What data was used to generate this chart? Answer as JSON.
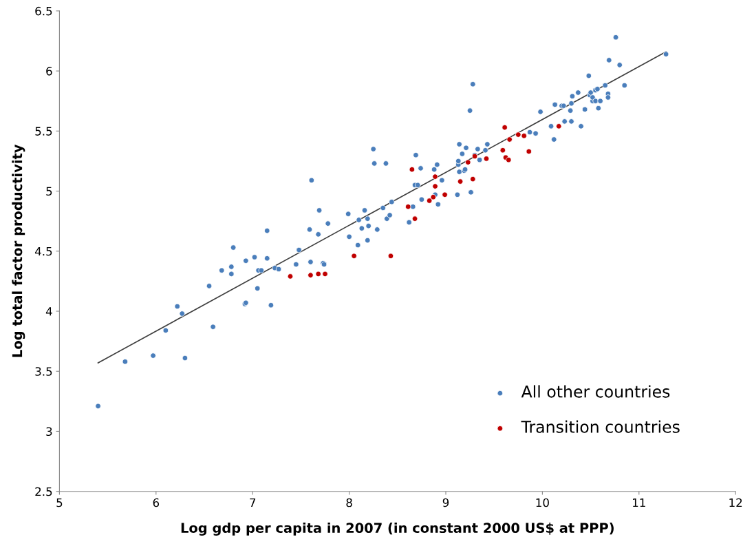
{
  "chart_data": {
    "type": "scatter",
    "xlabel": "Log gdp per capita in 2007 (in constant 2000 US$ at PPP)",
    "ylabel": "Log total factor productivity",
    "xlim": [
      5,
      12
    ],
    "xticks": [
      5,
      6,
      7,
      8,
      9,
      10,
      11,
      12
    ],
    "ylim": [
      2.5,
      6.5
    ],
    "yticks": [
      2.5,
      3,
      3.5,
      4,
      4.5,
      5,
      5.5,
      6,
      6.5
    ],
    "grid": false,
    "legend": "bottom right",
    "marker": "circle",
    "series": [
      {
        "name": "All other countries",
        "color": "#4a7ebb",
        "x": [
          5.4,
          5.68,
          5.97,
          6.1,
          6.22,
          6.27,
          6.3,
          6.55,
          6.59,
          6.68,
          6.78,
          6.78,
          6.8,
          6.92,
          6.93,
          6.93,
          7.02,
          7.05,
          7.06,
          7.09,
          7.15,
          7.15,
          7.19,
          7.23,
          7.27,
          7.45,
          7.48,
          7.59,
          7.6,
          7.61,
          7.68,
          7.69,
          7.73,
          7.74,
          7.78,
          7.99,
          8.0,
          8.09,
          8.1,
          8.13,
          8.16,
          8.19,
          8.2,
          8.19,
          8.25,
          8.26,
          8.29,
          8.35,
          8.38,
          8.39,
          8.42,
          8.44,
          8.62,
          8.66,
          8.68,
          8.69,
          8.71,
          8.74,
          8.75,
          8.88,
          8.89,
          8.91,
          8.92,
          8.96,
          9.12,
          9.13,
          9.13,
          9.14,
          9.14,
          9.17,
          9.19,
          9.2,
          9.21,
          9.25,
          9.26,
          9.28,
          9.3,
          9.33,
          9.35,
          9.41,
          9.43,
          9.98,
          9.87,
          9.93,
          10.09,
          10.12,
          10.13,
          10.2,
          10.22,
          10.23,
          10.29,
          10.3,
          10.3,
          10.31,
          10.37,
          10.4,
          10.44,
          10.48,
          10.49,
          10.5,
          10.52,
          10.52,
          10.55,
          10.55,
          10.57,
          10.58,
          10.6,
          10.65,
          10.68,
          10.68,
          10.69,
          10.76,
          10.8,
          10.85,
          11.28
        ],
        "values": [
          3.21,
          3.58,
          3.63,
          3.84,
          4.04,
          3.98,
          3.61,
          4.21,
          3.87,
          4.34,
          4.31,
          4.37,
          4.53,
          4.06,
          4.07,
          4.42,
          4.45,
          4.19,
          4.34,
          4.34,
          4.44,
          4.67,
          4.05,
          4.36,
          4.35,
          4.39,
          4.51,
          4.68,
          4.41,
          5.09,
          4.64,
          4.84,
          4.4,
          4.39,
          4.73,
          4.81,
          4.62,
          4.55,
          4.76,
          4.69,
          4.84,
          4.59,
          4.71,
          4.77,
          5.35,
          5.23,
          4.68,
          4.86,
          5.23,
          4.77,
          4.8,
          4.91,
          4.74,
          4.87,
          5.05,
          5.3,
          5.05,
          5.19,
          4.93,
          5.18,
          4.97,
          5.22,
          4.89,
          5.09,
          4.97,
          5.22,
          5.25,
          5.16,
          5.39,
          5.31,
          5.17,
          5.18,
          5.36,
          5.67,
          4.99,
          5.89,
          5.3,
          5.35,
          5.26,
          5.34,
          5.39,
          5.66,
          5.49,
          5.48,
          5.54,
          5.43,
          5.72,
          5.71,
          5.71,
          5.58,
          5.67,
          5.73,
          5.58,
          5.79,
          5.82,
          5.54,
          5.68,
          5.96,
          5.8,
          5.82,
          5.75,
          5.78,
          5.75,
          5.84,
          5.85,
          5.69,
          5.75,
          5.88,
          5.81,
          5.78,
          6.09,
          6.28,
          6.05,
          5.88,
          6.14
        ]
      },
      {
        "name": "Transition countries",
        "color": "#c00000",
        "x": [
          7.39,
          7.6,
          7.68,
          7.75,
          8.05,
          8.43,
          8.61,
          8.65,
          8.68,
          8.83,
          8.87,
          8.89,
          8.89,
          8.99,
          9.15,
          9.23,
          9.28,
          9.3,
          9.42,
          9.59,
          9.61,
          9.62,
          9.65,
          9.66,
          9.75,
          9.81,
          9.86,
          10.17
        ],
        "values": [
          4.29,
          4.3,
          4.31,
          4.31,
          4.46,
          4.46,
          4.87,
          5.18,
          4.77,
          4.92,
          4.95,
          5.04,
          5.12,
          4.97,
          5.08,
          5.24,
          5.1,
          5.29,
          5.27,
          5.34,
          5.53,
          5.28,
          5.26,
          5.43,
          5.47,
          5.46,
          5.33,
          5.54
        ]
      },
      {
        "type": "line",
        "color": "#404040",
        "line_style": "solid",
        "marker": "none",
        "x": [
          5.4,
          11.28
        ],
        "values": [
          3.57,
          6.16
        ]
      }
    ]
  }
}
